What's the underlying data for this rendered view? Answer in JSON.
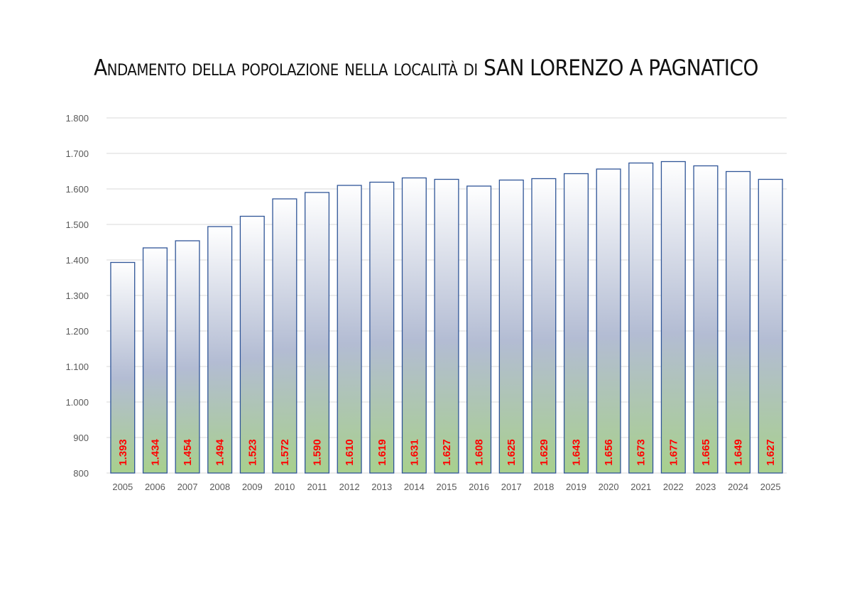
{
  "chart_data": {
    "type": "bar",
    "title": "Andamento della popolazione nella località di SAN LORENZO A PAGNATICO",
    "xlabel": "",
    "ylabel": "",
    "ylim": [
      800,
      1800
    ],
    "yticks": [
      800,
      900,
      1000,
      1100,
      1200,
      1300,
      1400,
      1500,
      1600,
      1700,
      1800
    ],
    "ytick_labels": [
      "800",
      "900",
      "1.000",
      "1.100",
      "1.200",
      "1.300",
      "1.400",
      "1.500",
      "1.600",
      "1.700",
      "1.800"
    ],
    "grid": true,
    "legend": "none",
    "categories": [
      "2005",
      "2006",
      "2007",
      "2008",
      "2009",
      "2010",
      "2011",
      "2012",
      "2013",
      "2014",
      "2015",
      "2016",
      "2017",
      "2018",
      "2019",
      "2020",
      "2021",
      "2022",
      "2023",
      "2024",
      "2025"
    ],
    "values": [
      1393,
      1434,
      1454,
      1494,
      1523,
      1572,
      1590,
      1610,
      1619,
      1631,
      1627,
      1608,
      1625,
      1629,
      1643,
      1656,
      1673,
      1677,
      1665,
      1649,
      1627
    ],
    "value_labels": [
      "1.393",
      "1.434",
      "1.454",
      "1.494",
      "1.523",
      "1.572",
      "1.590",
      "1.610",
      "1.619",
      "1.631",
      "1.627",
      "1.608",
      "1.625",
      "1.629",
      "1.643",
      "1.656",
      "1.673",
      "1.677",
      "1.665",
      "1.649",
      "1.627"
    ],
    "colors": {
      "bar_top": "#ffffff",
      "bar_middle": "#b3bcd3",
      "bar_bottom": "#a8d08d",
      "bar_border": "#2f5597",
      "label": "#ff0000",
      "grid": "#d9d9d9"
    }
  }
}
